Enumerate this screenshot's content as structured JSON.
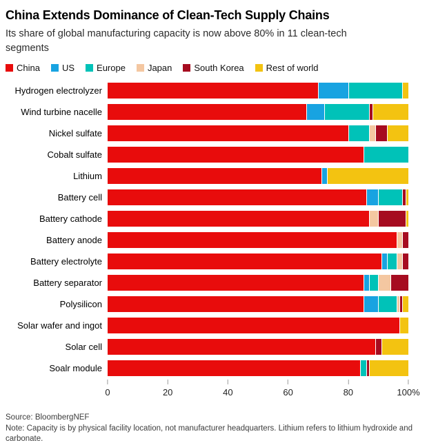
{
  "header": {
    "title": "China Extends Dominance of Clean-Tech Supply Chains",
    "subtitle": "Its share of global manufacturing capacity is now above 80% in 11 clean-tech segments"
  },
  "legend": [
    {
      "label": "China",
      "color": "#e80c0c"
    },
    {
      "label": "US",
      "color": "#18a3e1"
    },
    {
      "label": "Europe",
      "color": "#00c2b8"
    },
    {
      "label": "Japan",
      "color": "#f4c7a1"
    },
    {
      "label": "South Korea",
      "color": "#a60c20"
    },
    {
      "label": "Rest of world",
      "color": "#f3c311"
    }
  ],
  "chart_data": {
    "type": "bar",
    "orientation": "horizontal",
    "stacked": true,
    "title": "China Extends Dominance of Clean-Tech Supply Chains",
    "xlabel": "",
    "ylabel": "",
    "xlim": [
      0,
      100
    ],
    "x_ticks": [
      {
        "value": 0,
        "label": "0"
      },
      {
        "value": 20,
        "label": "20"
      },
      {
        "value": 40,
        "label": "40"
      },
      {
        "value": 60,
        "label": "60"
      },
      {
        "value": 80,
        "label": "80"
      },
      {
        "value": 100,
        "label": "100%"
      }
    ],
    "categories": [
      "Hydrogen electrolyzer",
      "Wind turbine nacelle",
      "Nickel sulfate",
      "Cobalt sulfate",
      "Lithium",
      "Battery cell",
      "Battery cathode",
      "Battery anode",
      "Battery electrolyte",
      "Battery separator",
      "Polysilicon",
      "Solar wafer and ingot",
      "Solar cell",
      "Soalr module"
    ],
    "series": [
      {
        "name": "China",
        "color": "#e80c0c",
        "values": [
          70,
          66,
          80,
          85,
          71,
          86,
          87,
          96,
          91,
          85,
          85,
          97,
          89,
          84
        ]
      },
      {
        "name": "US",
        "color": "#18a3e1",
        "values": [
          10,
          6,
          0,
          0,
          2,
          4,
          0,
          0,
          2,
          2,
          5,
          0,
          0,
          0
        ]
      },
      {
        "name": "Europe",
        "color": "#00c2b8",
        "values": [
          18,
          15,
          7,
          15,
          0,
          8,
          0,
          0,
          3,
          3,
          6,
          0,
          0,
          2
        ]
      },
      {
        "name": "Japan",
        "color": "#f4c7a1",
        "values": [
          0,
          0,
          2,
          0,
          0,
          0,
          3,
          2,
          2,
          4,
          1,
          0,
          0,
          0
        ]
      },
      {
        "name": "South Korea",
        "color": "#a60c20",
        "values": [
          0,
          1,
          4,
          0,
          0,
          1,
          9,
          2,
          2,
          6,
          1,
          0,
          2,
          1
        ]
      },
      {
        "name": "Rest of world",
        "color": "#f3c311",
        "values": [
          2,
          12,
          7,
          0,
          27,
          1,
          1,
          0,
          0,
          0,
          2,
          3,
          9,
          13
        ]
      }
    ],
    "legend_position": "top",
    "grid": false
  },
  "footer": {
    "source": "Source: BloombergNEF",
    "note": "Note: Capacity is by physical facility location, not manufacturer headquarters. Lithium refers to lithium hydroxide and carbonate."
  }
}
